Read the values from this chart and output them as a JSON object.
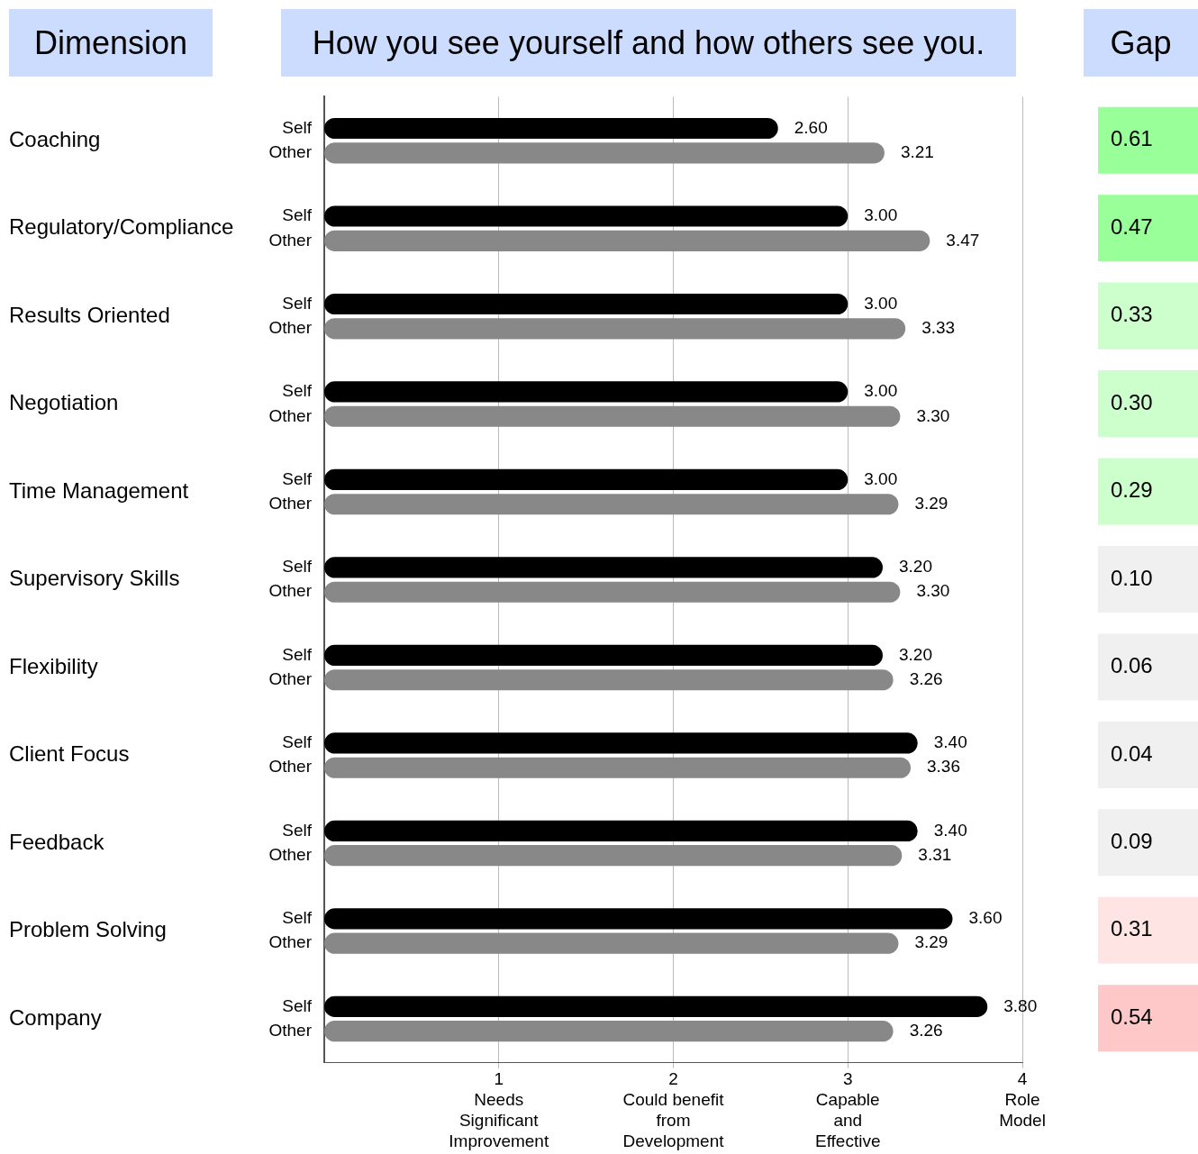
{
  "chart_data": [
    {
      "type": "bar",
      "orientation": "horizontal",
      "title": "How you see yourself and how others see you.",
      "ylabel": "Dimension",
      "categories": [
        "Coaching",
        "Regulatory/Compliance",
        "Results Oriented",
        "Negotiation",
        "Time Management",
        "Supervisory Skills",
        "Flexibility",
        "Client Focus",
        "Feedback",
        "Problem Solving",
        "Company"
      ],
      "series": [
        {
          "name": "Self",
          "color": "#000000",
          "values": [
            2.6,
            3.0,
            3.0,
            3.0,
            3.0,
            3.2,
            3.2,
            3.4,
            3.4,
            3.6,
            3.8
          ],
          "value_labels": [
            "2.60",
            "3.00",
            "3.00",
            "3.00",
            "3.00",
            "3.20",
            "3.20",
            "3.40",
            "3.40",
            "3.60",
            "3.80"
          ]
        },
        {
          "name": "Other",
          "color": "#888888",
          "values": [
            3.21,
            3.47,
            3.33,
            3.3,
            3.29,
            3.3,
            3.26,
            3.36,
            3.31,
            3.29,
            3.26
          ],
          "value_labels": [
            "3.21",
            "3.47",
            "3.33",
            "3.30",
            "3.29",
            "3.30",
            "3.26",
            "3.36",
            "3.31",
            "3.29",
            "3.26"
          ]
        }
      ],
      "xlim": [
        0,
        4
      ],
      "xticks": [
        {
          "value": 1,
          "label": "1\nNeeds\nSignificant\nImprovement"
        },
        {
          "value": 2,
          "label": "2\nCould benefit\nfrom\nDevelopment"
        },
        {
          "value": 3,
          "label": "3\nCapable\nand\nEffective"
        },
        {
          "value": 4,
          "label": "4\nRole\nModel"
        }
      ],
      "grid": "x"
    },
    {
      "type": "other",
      "title": "Gap",
      "values": [
        0.61,
        0.47,
        0.33,
        0.3,
        0.29,
        0.1,
        0.06,
        0.04,
        0.09,
        0.31,
        0.54
      ],
      "value_labels": [
        "0.61",
        "0.47",
        "0.33",
        "0.30",
        "0.29",
        "0.10",
        "0.06",
        "0.04",
        "0.09",
        "0.31",
        "0.54"
      ],
      "colors": [
        "#99ff99",
        "#99ff99",
        "#ccffcc",
        "#ccffcc",
        "#ccffcc",
        "#f0f0f0",
        "#f0f0f0",
        "#f0f0f0",
        "#f0f0f0",
        "#ffe4e4",
        "#ffc8c8"
      ]
    }
  ]
}
